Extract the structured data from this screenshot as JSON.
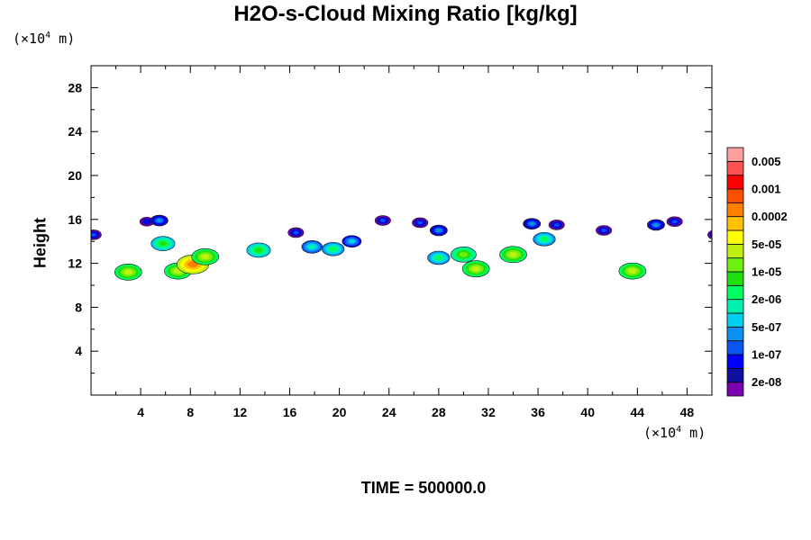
{
  "chart_data": {
    "type": "heatmap",
    "title": "H2O-s-Cloud Mixing Ratio [kg/kg]",
    "ylabel": "Height",
    "y_unit_prefix": "(×10",
    "unit_exp": "4",
    "unit_suffix": " m)",
    "x_unit_prefix": "(×10",
    "xlim": [
      0,
      50
    ],
    "ylim": [
      0,
      30
    ],
    "xticks": [
      4,
      8,
      12,
      16,
      20,
      24,
      28,
      32,
      36,
      40,
      44,
      48
    ],
    "yticks": [
      4,
      8,
      12,
      16,
      20,
      24,
      28
    ],
    "footer": "TIME = 500000.0",
    "colorbar": {
      "colors": [
        "#7a00b0",
        "#1010a0",
        "#0000ff",
        "#0a55f0",
        "#0a90f0",
        "#00d0f0",
        "#00f0b0",
        "#00ff60",
        "#20e010",
        "#70f010",
        "#c0f010",
        "#ffff00",
        "#ffc000",
        "#ff8000",
        "#ff5000",
        "#ff0000",
        "#ff5050",
        "#ffa0a0"
      ],
      "labels": [
        "2e-08",
        "1e-07",
        "5e-07",
        "2e-06",
        "1e-05",
        "5e-05",
        "0.0002",
        "0.001",
        "0.005"
      ]
    },
    "cloud_cells": [
      {
        "x": 0.2,
        "y": 14.6,
        "level": 3
      },
      {
        "x": 3.0,
        "y": 11.2,
        "level": 10
      },
      {
        "x": 4.5,
        "y": 15.8,
        "level": 2
      },
      {
        "x": 5.5,
        "y": 15.9,
        "level": 4
      },
      {
        "x": 5.8,
        "y": 13.8,
        "level": 8
      },
      {
        "x": 7.0,
        "y": 11.3,
        "level": 10
      },
      {
        "x": 8.2,
        "y": 11.9,
        "level": 13
      },
      {
        "x": 9.2,
        "y": 12.6,
        "level": 10
      },
      {
        "x": 13.5,
        "y": 13.2,
        "level": 8
      },
      {
        "x": 16.5,
        "y": 14.8,
        "level": 3
      },
      {
        "x": 17.8,
        "y": 13.5,
        "level": 6
      },
      {
        "x": 19.5,
        "y": 13.3,
        "level": 7
      },
      {
        "x": 21.0,
        "y": 14.0,
        "level": 5
      },
      {
        "x": 23.5,
        "y": 15.9,
        "level": 3
      },
      {
        "x": 26.5,
        "y": 15.7,
        "level": 3
      },
      {
        "x": 28.0,
        "y": 15.0,
        "level": 4
      },
      {
        "x": 28.0,
        "y": 12.5,
        "level": 7
      },
      {
        "x": 30.0,
        "y": 12.8,
        "level": 9
      },
      {
        "x": 31.0,
        "y": 11.5,
        "level": 10
      },
      {
        "x": 34.0,
        "y": 12.8,
        "level": 10
      },
      {
        "x": 35.5,
        "y": 15.6,
        "level": 4
      },
      {
        "x": 36.5,
        "y": 14.2,
        "level": 7
      },
      {
        "x": 37.5,
        "y": 15.5,
        "level": 3
      },
      {
        "x": 41.3,
        "y": 15.0,
        "level": 3
      },
      {
        "x": 43.6,
        "y": 11.3,
        "level": 10
      },
      {
        "x": 45.5,
        "y": 15.5,
        "level": 4
      },
      {
        "x": 47.0,
        "y": 15.8,
        "level": 3
      },
      {
        "x": 50.3,
        "y": 14.6,
        "level": 3
      }
    ]
  }
}
